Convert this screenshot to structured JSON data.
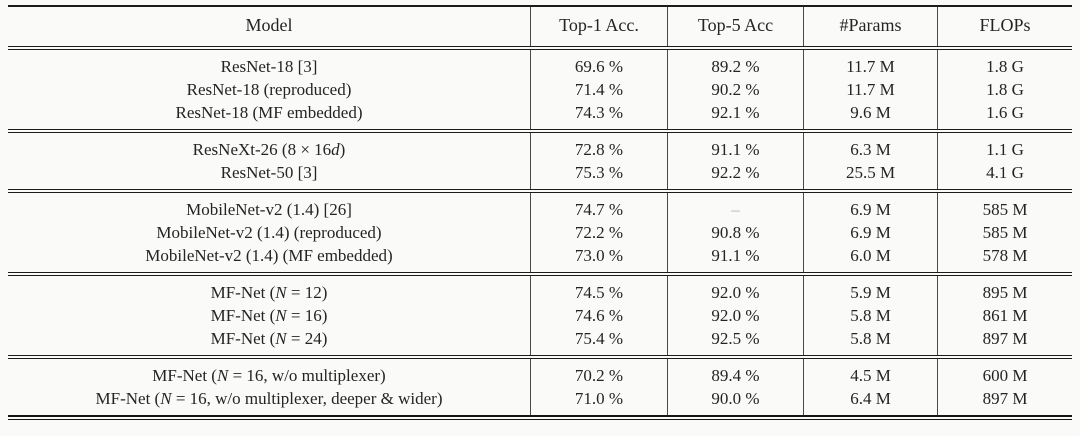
{
  "table": {
    "columns": [
      "Model",
      "Top-1 Acc.",
      "Top-5 Acc",
      "#Params",
      "FLOPs"
    ],
    "missing_value": "–",
    "groups": [
      {
        "rows": [
          {
            "model": "ResNet-18 [3]",
            "top1": "69.6 %",
            "top5": "89.2 %",
            "params": "11.7 M",
            "flops": "1.8 G"
          },
          {
            "model": "ResNet-18 (reproduced)",
            "top1": "71.4 %",
            "top5": "90.2 %",
            "params": "11.7 M",
            "flops": "1.8 G"
          },
          {
            "model": "ResNet-18 (MF embedded)",
            "top1": "74.3 %",
            "top5": "92.1 %",
            "params": "9.6 M",
            "flops": "1.6 G"
          }
        ]
      },
      {
        "rows": [
          {
            "model": "ResNeXt-26 (8 × 16d)",
            "top1": "72.8 %",
            "top5": "91.1 %",
            "params": "6.3 M",
            "flops": "1.1 G"
          },
          {
            "model": "ResNet-50 [3]",
            "top1": "75.3 %",
            "top5": "92.2 %",
            "params": "25.5 M",
            "flops": "4.1 G"
          }
        ]
      },
      {
        "rows": [
          {
            "model": "MobileNet-v2 (1.4) [26]",
            "top1": "74.7 %",
            "top5": "–",
            "params": "6.9 M",
            "flops": "585 M"
          },
          {
            "model": "MobileNet-v2 (1.4) (reproduced)",
            "top1": "72.2 %",
            "top5": "90.8 %",
            "params": "6.9 M",
            "flops": "585 M"
          },
          {
            "model": "MobileNet-v2 (1.4) (MF embedded)",
            "top1": "73.0 %",
            "top5": "91.1 %",
            "params": "6.0 M",
            "flops": "578 M"
          }
        ]
      },
      {
        "rows": [
          {
            "model": "MF-Net (N = 12)",
            "top1": "74.5 %",
            "top5": "92.0 %",
            "params": "5.9 M",
            "flops": "895 M"
          },
          {
            "model": "MF-Net (N = 16)",
            "top1": "74.6 %",
            "top5": "92.0 %",
            "params": "5.8 M",
            "flops": "861 M"
          },
          {
            "model": "MF-Net (N = 24)",
            "top1": "75.4 %",
            "top5": "92.5 %",
            "params": "5.8 M",
            "flops": "897 M"
          }
        ]
      },
      {
        "rows": [
          {
            "model": "MF-Net (N = 16, w/o multiplexer)",
            "top1": "70.2 %",
            "top5": "89.4 %",
            "params": "4.5 M",
            "flops": "600 M"
          },
          {
            "model": "MF-Net (N = 16, w/o multiplexer, deeper & wider)",
            "top1": "71.0 %",
            "top5": "90.0 %",
            "params": "6.4 M",
            "flops": "897 M"
          }
        ]
      }
    ]
  }
}
